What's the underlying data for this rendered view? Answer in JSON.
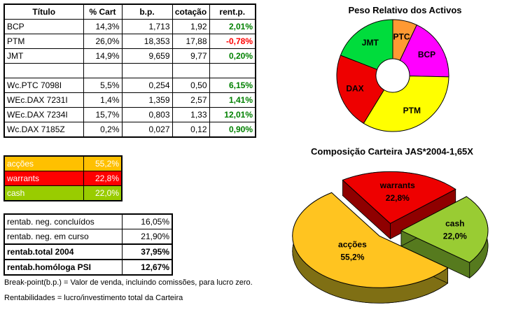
{
  "window": {
    "background": "#FFFFFF"
  },
  "table_main": {
    "headers": [
      "Título",
      "% Cart",
      "b.p.",
      "cotação",
      "rent.p."
    ],
    "rows": [
      {
        "titulo": "BCP",
        "cart": "14,3%",
        "bp": "1,713",
        "cotacao": "1,92",
        "rent": "2,01%",
        "rent_class": "pos"
      },
      {
        "titulo": "PTM",
        "cart": "26,0%",
        "bp": "18,353",
        "cotacao": "17,88",
        "rent": "-0,78%",
        "rent_class": "neg"
      },
      {
        "titulo": "JMT",
        "cart": "14,9%",
        "bp": "9,659",
        "cotacao": "9,77",
        "rent": "0,20%",
        "rent_class": "pos"
      },
      {
        "titulo": "",
        "cart": "",
        "bp": "",
        "cotacao": "",
        "rent": "",
        "rent_class": ""
      },
      {
        "titulo": "Wc.PTC 7098I",
        "cart": "5,5%",
        "bp": "0,254",
        "cotacao": "0,50",
        "rent": "6,15%",
        "rent_class": "pos"
      },
      {
        "titulo": "WEc.DAX 7231I",
        "cart": "1,4%",
        "bp": "1,359",
        "cotacao": "2,57",
        "rent": "1,41%",
        "rent_class": "pos"
      },
      {
        "titulo": "WEc.DAX 7234I",
        "cart": "15,7%",
        "bp": "0,803",
        "cotacao": "1,33",
        "rent": "12,01%",
        "rent_class": "pos"
      },
      {
        "titulo": "Wc.DAX 7185Z",
        "cart": "0,2%",
        "bp": "0,027",
        "cotacao": "0,12",
        "rent": "0,90%",
        "rent_class": "pos"
      }
    ]
  },
  "allocation_table": {
    "rows": [
      {
        "label": "acções",
        "value": "55,2%",
        "color": "#FFC000"
      },
      {
        "label": "warrants",
        "value": "22,8%",
        "color": "#FF0000"
      },
      {
        "label": "cash",
        "value": "22,0%",
        "color": "#99CC00"
      }
    ]
  },
  "returns_table": {
    "rows": [
      {
        "label": "rentab. neg. concluídos",
        "value": "16,05%",
        "weight": ""
      },
      {
        "label": "rentab. neg. em curso",
        "value": "21,90%",
        "weight": ""
      },
      {
        "label": "rentab.total 2004",
        "value": "37,95%",
        "weight": "bold"
      },
      {
        "label": "rentab.homóloga PSI",
        "value": "12,67%",
        "weight": "bold"
      }
    ]
  },
  "footnotes": [
    "Break-point(b.p.) = Valor de venda, incluindo comissões, para lucro zero.",
    "Rentabilidades = lucro/investimento total da Carteira"
  ],
  "chart_data": [
    {
      "type": "pie",
      "variant": "donut",
      "title": "Peso Relativo dos Activos",
      "labels": [
        "PTC",
        "BCP",
        "PTM",
        "DAX",
        "JMT"
      ],
      "values": [
        5.5,
        14.3,
        26.0,
        17.3,
        14.9
      ],
      "colors": [
        "#FF9933",
        "#FF00FF",
        "#FFFF00",
        "#EE0000",
        "#00DC3C"
      ],
      "start": "top, clockwise",
      "legend_position": "labels-inside"
    },
    {
      "type": "pie",
      "variant": "3d-exploded",
      "title": "Composição Carteira JAS*2004-1,65X",
      "labels": [
        "acções",
        "warrants",
        "cash"
      ],
      "values": [
        55.2,
        22.8,
        22.0
      ],
      "value_labels": [
        "55,2%",
        "22,8%",
        "22,0%"
      ],
      "colors": [
        "#FFC420",
        "#EE0000",
        "#99CC33"
      ],
      "wall_colors": [
        "#7F6F14",
        "#8F0000",
        "#567A1E"
      ],
      "legend_position": "labels-inside"
    }
  ]
}
